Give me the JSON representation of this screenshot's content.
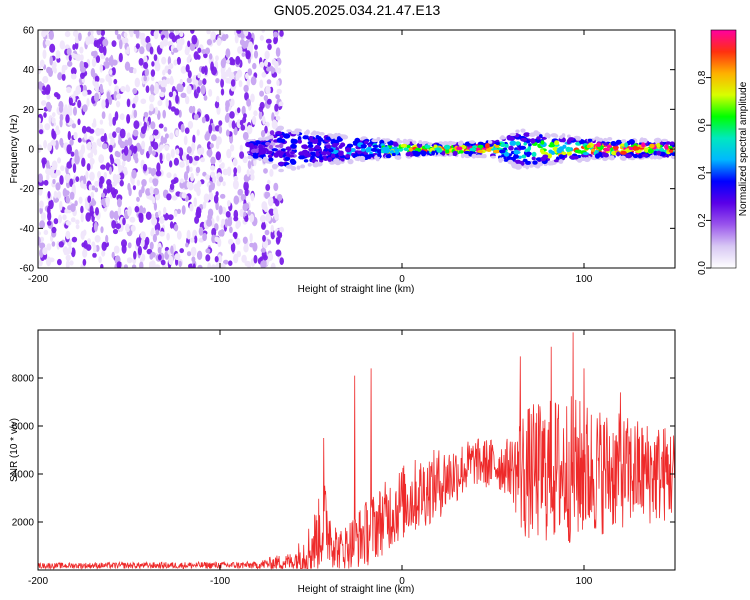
{
  "title": "GN05.2025.034.21.47.E13",
  "colors": {
    "snr_line": "#ee2a2a",
    "noise_dot": "#8a2be2",
    "colormap": [
      "#ffffff",
      "#d8c8f4",
      "#9a55ec",
      "#5a00e8",
      "#0000ff",
      "#00b8ff",
      "#00e8c0",
      "#00ff00",
      "#d8ff00",
      "#ffb000",
      "#ff3010",
      "#ff00a0"
    ]
  },
  "chart_data": [
    {
      "type": "heatmap",
      "name": "spectrogram",
      "xlabel": "Height of straight line (km)",
      "ylabel": "Frequency (Hz)",
      "xlim": [
        -200,
        150
      ],
      "ylim": [
        -60,
        60
      ],
      "xticks": [
        -200,
        -100,
        0,
        100
      ],
      "yticks": [
        60,
        40,
        20,
        0,
        -20,
        -40,
        -60
      ],
      "grid": false,
      "noise_region_km": [
        -200,
        -66
      ],
      "signal_center_hz": 0,
      "signal_halfwidth_hz": [
        {
          "x": -84,
          "hz": 3
        },
        {
          "x": -75,
          "hz": 4
        },
        {
          "x": -66,
          "hz": 8
        },
        {
          "x": -50,
          "hz": 6
        },
        {
          "x": -20,
          "hz": 4
        },
        {
          "x": 0,
          "hz": 3
        },
        {
          "x": 20,
          "hz": 2
        },
        {
          "x": 50,
          "hz": 3
        },
        {
          "x": 65,
          "hz": 7
        },
        {
          "x": 100,
          "hz": 4
        },
        {
          "x": 150,
          "hz": 3
        }
      ],
      "amplitude_peaks": [
        {
          "x": -83,
          "amp": 0.3
        },
        {
          "x": -55,
          "amp": 0.35
        },
        {
          "x": -20,
          "amp": 0.45
        },
        {
          "x": 0,
          "amp": 0.75
        },
        {
          "x": 20,
          "amp": 0.9
        },
        {
          "x": 45,
          "amp": 0.95
        },
        {
          "x": 60,
          "amp": 0.5
        },
        {
          "x": 85,
          "amp": 0.75
        },
        {
          "x": 120,
          "amp": 0.95
        },
        {
          "x": 145,
          "amp": 0.9
        }
      ],
      "colorbar": {
        "label": "Normalized spectral amplitude",
        "range": [
          0,
          1
        ],
        "ticks": [
          "0.0",
          "0.2",
          "0.4",
          "0.6",
          "0.8"
        ]
      }
    },
    {
      "type": "line",
      "name": "snr",
      "xlabel": "Height of straight line (km)",
      "ylabel": "SNR (10 * v/v)",
      "xlim": [
        -200,
        150
      ],
      "ylim": [
        0,
        10000
      ],
      "xticks": [
        -200,
        -100,
        0,
        100
      ],
      "yticks": [
        2000,
        4000,
        6000,
        8000
      ],
      "grid": false,
      "envelope": [
        {
          "x": -200,
          "base": 180,
          "amp": 120
        },
        {
          "x": -80,
          "base": 200,
          "amp": 150
        },
        {
          "x": -70,
          "base": 300,
          "amp": 300
        },
        {
          "x": -60,
          "base": 350,
          "amp": 400
        },
        {
          "x": -50,
          "base": 900,
          "amp": 1200
        },
        {
          "x": -42,
          "base": 2000,
          "amp": 1800
        },
        {
          "x": -35,
          "base": 800,
          "amp": 800
        },
        {
          "x": -20,
          "base": 1500,
          "amp": 1400
        },
        {
          "x": 0,
          "base": 2800,
          "amp": 1600
        },
        {
          "x": 20,
          "base": 3600,
          "amp": 1500
        },
        {
          "x": 40,
          "base": 4500,
          "amp": 1000
        },
        {
          "x": 60,
          "base": 4300,
          "amp": 1200
        },
        {
          "x": 66,
          "base": 4000,
          "amp": 2800
        },
        {
          "x": 90,
          "base": 4200,
          "amp": 3200
        },
        {
          "x": 120,
          "base": 4100,
          "amp": 2400
        },
        {
          "x": 150,
          "base": 4000,
          "amp": 2000
        }
      ],
      "spikes": [
        {
          "x": -43,
          "value": 5500
        },
        {
          "x": -26,
          "value": 8100
        },
        {
          "x": -17,
          "value": 8400
        },
        {
          "x": 65,
          "value": 8900
        },
        {
          "x": 82,
          "value": 9300
        },
        {
          "x": 94,
          "value": 9900
        },
        {
          "x": 100,
          "value": 8400
        },
        {
          "x": 120,
          "value": 7400
        }
      ]
    }
  ]
}
